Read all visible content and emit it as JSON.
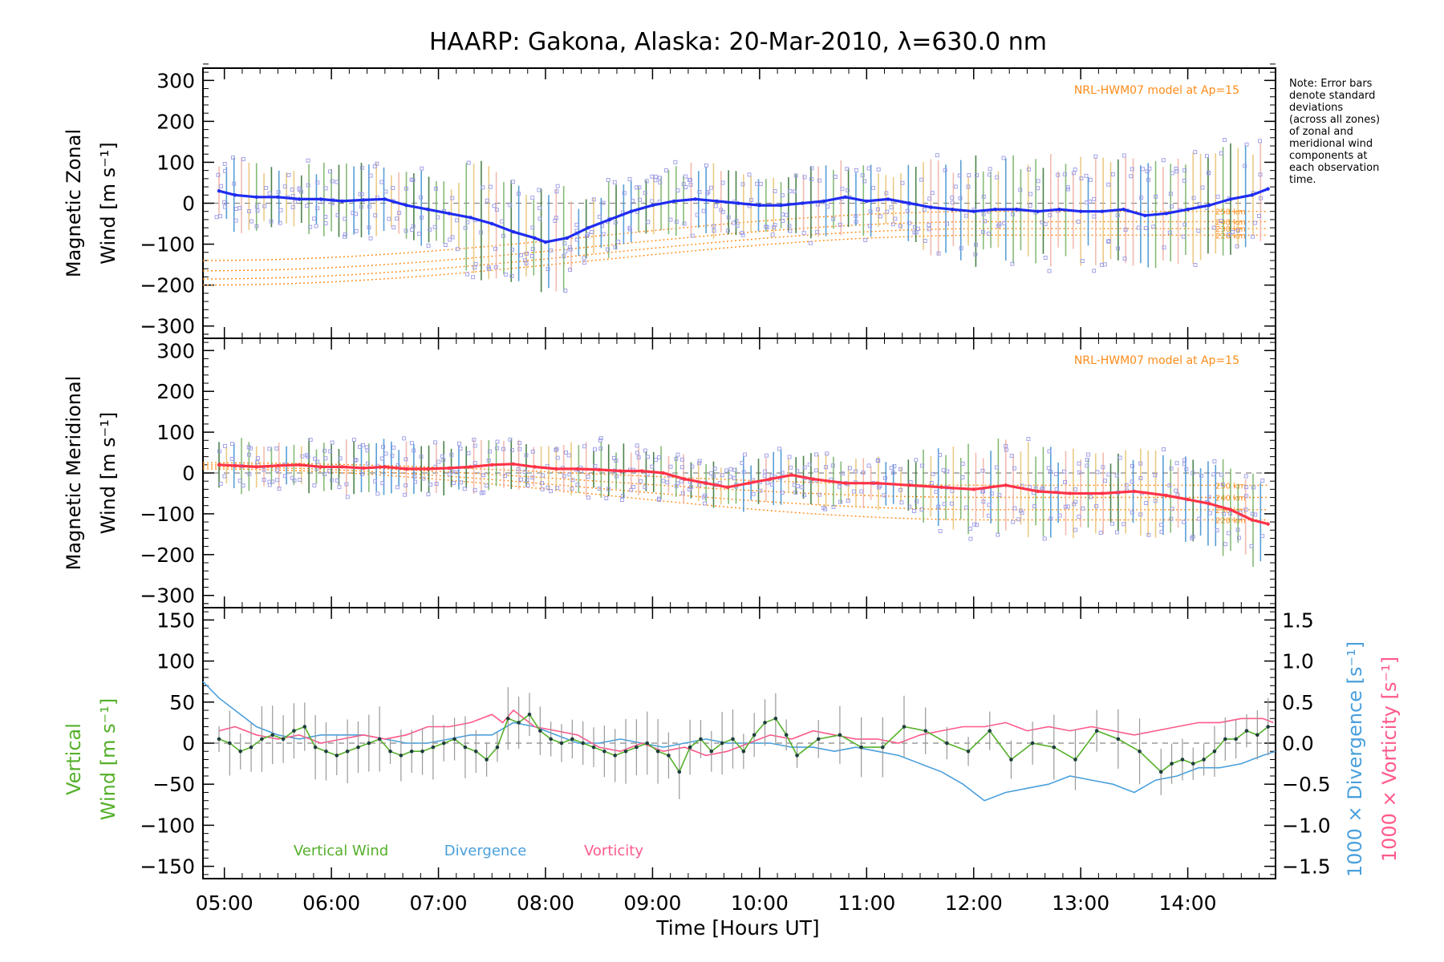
{
  "title": "HAARP: Gakona,  Alaska: 20-Mar-2010, λ=630.0 nm",
  "note": [
    "Note: Error bars",
    "denote standard",
    "deviations",
    "(across all zones)",
    "of zonal and",
    "meridional wind",
    "components at",
    "each observation",
    "time."
  ],
  "colors": {
    "zonal": "#1f2cf0",
    "meridional": "#ff3348",
    "vertical": "#55b02a",
    "divergence": "#4aa0dc",
    "vorticity": "#ff5a8a",
    "model": "#ff8c1a",
    "scatter": "#9a9ae6",
    "errorbar_dark": "#2c6e2c"
  },
  "chart_data": [
    {
      "type": "line",
      "panel": "zonal",
      "ylabel": [
        "Magnetic Zonal",
        "Wind [m s⁻¹]"
      ],
      "ylim": [
        -330,
        330
      ],
      "yticks": [
        300,
        200,
        100,
        0,
        -100,
        -200,
        -300
      ],
      "model_label": "NRL-HWM07 model at Ap=15",
      "model_altitudes": [
        "250 km",
        "240 km",
        "230 km",
        "220 km"
      ],
      "series": [
        {
          "x": [
            4.95,
            5.1,
            5.3,
            5.5,
            5.7,
            5.9,
            6.1,
            6.3,
            6.5,
            6.7,
            6.9,
            7.1,
            7.3,
            7.5,
            7.7,
            7.9,
            8.0,
            8.2,
            8.4,
            8.6,
            8.8,
            9.0,
            9.2,
            9.4,
            9.6,
            9.8,
            10.0,
            10.2,
            10.4,
            10.6,
            10.8,
            11.0,
            11.2,
            11.4,
            11.6,
            11.8,
            12.0,
            12.2,
            12.4,
            12.6,
            12.8,
            13.0,
            13.2,
            13.4,
            13.6,
            13.8,
            14.0,
            14.2,
            14.4,
            14.6,
            14.75
          ],
          "y": [
            30,
            20,
            15,
            15,
            10,
            10,
            5,
            8,
            10,
            -5,
            -15,
            -25,
            -35,
            -50,
            -70,
            -85,
            -95,
            -85,
            -60,
            -40,
            -20,
            -5,
            5,
            10,
            5,
            0,
            -5,
            -5,
            0,
            5,
            15,
            5,
            10,
            0,
            -10,
            -15,
            -20,
            -15,
            -15,
            -20,
            -15,
            -20,
            -20,
            -15,
            -30,
            -25,
            -15,
            -5,
            10,
            20,
            35
          ]
        }
      ],
      "model_series": [
        {
          "name": "250 km",
          "y": [
            -140,
            -20
          ]
        },
        {
          "name": "240 km",
          "y": [
            -165,
            -45
          ]
        },
        {
          "name": "230 km",
          "y": [
            -185,
            -62
          ]
        },
        {
          "name": "220 km",
          "y": [
            -200,
            -78
          ]
        }
      ]
    },
    {
      "type": "line",
      "panel": "meridional",
      "ylabel": [
        "Magnetic Meridional",
        "Wind [m s⁻¹]"
      ],
      "ylim": [
        -330,
        330
      ],
      "yticks": [
        300,
        200,
        100,
        0,
        -100,
        -200,
        -300
      ],
      "model_label": "NRL-HWM07 model at Ap=15",
      "model_altitudes": [
        "250 km",
        "240 km",
        "230 km",
        "220 km"
      ],
      "series": [
        {
          "x": [
            4.95,
            5.1,
            5.3,
            5.5,
            5.7,
            5.9,
            6.1,
            6.3,
            6.5,
            6.7,
            6.9,
            7.1,
            7.3,
            7.5,
            7.7,
            7.9,
            8.1,
            8.3,
            8.5,
            8.7,
            8.9,
            9.1,
            9.3,
            9.5,
            9.7,
            9.9,
            10.1,
            10.3,
            10.5,
            10.8,
            11.1,
            11.4,
            11.7,
            12.0,
            12.3,
            12.6,
            12.9,
            13.2,
            13.5,
            13.8,
            14.0,
            14.2,
            14.4,
            14.6,
            14.75
          ],
          "y": [
            20,
            18,
            15,
            18,
            20,
            15,
            15,
            12,
            15,
            10,
            10,
            12,
            15,
            20,
            22,
            15,
            10,
            10,
            8,
            5,
            5,
            0,
            -15,
            -25,
            -35,
            -25,
            -15,
            -5,
            -15,
            -25,
            -25,
            -30,
            -35,
            -40,
            -30,
            -45,
            -50,
            -50,
            -45,
            -55,
            -65,
            -75,
            -90,
            -115,
            -125
          ]
        }
      ],
      "model_series": [
        {
          "name": "250 km",
          "y": [
            25,
            -30
          ]
        },
        {
          "name": "240 km",
          "y": [
            20,
            -60
          ]
        },
        {
          "name": "230 km",
          "y": [
            15,
            -90
          ]
        },
        {
          "name": "220 km",
          "y": [
            10,
            -115
          ]
        }
      ]
    },
    {
      "type": "line",
      "panel": "vertical",
      "ylabel_left": [
        {
          "text": "Vertical",
          "color": "vertical"
        },
        {
          "text": "Wind [m s⁻¹]",
          "color": "vertical"
        }
      ],
      "ylabel_right": [
        {
          "text": "1000 × Divergence [s⁻¹]",
          "color": "divergence"
        },
        {
          "text": "1000 × Vorticity [s⁻¹]",
          "color": "vorticity"
        }
      ],
      "ylim": [
        -165,
        165
      ],
      "yticks": [
        150,
        100,
        50,
        0,
        -50,
        -100,
        -150
      ],
      "y2lim": [
        -1.65,
        1.65
      ],
      "y2ticks": [
        "1.5",
        "1.0",
        "0.5",
        "0.0",
        "−0.5",
        "−1.0",
        "−1.5"
      ],
      "xlabel": "Time [Hours UT]",
      "xlim": [
        4.8,
        14.82
      ],
      "xticks": [
        "05:00",
        "06:00",
        "07:00",
        "08:00",
        "09:00",
        "10:00",
        "11:00",
        "12:00",
        "13:00",
        "14:00"
      ],
      "legend": [
        {
          "label": "Vertical Wind",
          "color": "vertical"
        },
        {
          "label": "Divergence",
          "color": "divergence"
        },
        {
          "label": "Vorticity",
          "color": "vorticity"
        }
      ],
      "series": [
        {
          "name": "Vertical Wind",
          "color": "vertical",
          "x": [
            4.95,
            5.05,
            5.15,
            5.25,
            5.35,
            5.45,
            5.55,
            5.65,
            5.75,
            5.85,
            5.95,
            6.05,
            6.15,
            6.25,
            6.35,
            6.45,
            6.55,
            6.65,
            6.75,
            6.85,
            6.95,
            7.05,
            7.15,
            7.25,
            7.35,
            7.45,
            7.55,
            7.65,
            7.75,
            7.85,
            7.95,
            8.05,
            8.15,
            8.25,
            8.35,
            8.45,
            8.55,
            8.65,
            8.75,
            8.85,
            8.95,
            9.05,
            9.15,
            9.25,
            9.35,
            9.45,
            9.55,
            9.65,
            9.75,
            9.85,
            9.95,
            10.05,
            10.15,
            10.25,
            10.35,
            10.55,
            10.75,
            10.95,
            11.15,
            11.35,
            11.55,
            11.75,
            11.95,
            12.15,
            12.35,
            12.55,
            12.75,
            12.95,
            13.15,
            13.35,
            13.55,
            13.75,
            13.85,
            13.95,
            14.05,
            14.15,
            14.25,
            14.35,
            14.45,
            14.55,
            14.65,
            14.75
          ],
          "y": [
            5,
            0,
            -10,
            -5,
            5,
            10,
            5,
            15,
            20,
            -5,
            -10,
            -15,
            -10,
            -5,
            0,
            5,
            -10,
            -15,
            -10,
            -10,
            -5,
            0,
            5,
            -5,
            -10,
            -20,
            -5,
            30,
            25,
            35,
            15,
            5,
            0,
            5,
            0,
            -5,
            -10,
            -15,
            -10,
            -5,
            0,
            -10,
            -15,
            -35,
            -5,
            5,
            -10,
            0,
            5,
            -10,
            10,
            25,
            30,
            10,
            -15,
            5,
            10,
            -5,
            -5,
            20,
            15,
            0,
            -10,
            15,
            -20,
            0,
            -5,
            -20,
            15,
            5,
            -10,
            -35,
            -25,
            -20,
            -25,
            -20,
            -10,
            5,
            5,
            15,
            10,
            20
          ]
        },
        {
          "name": "Divergence",
          "color": "divergence",
          "x": [
            4.8,
            4.95,
            5.1,
            5.3,
            5.5,
            5.7,
            5.9,
            6.1,
            6.3,
            6.5,
            6.7,
            6.9,
            7.1,
            7.3,
            7.5,
            7.7,
            7.9,
            8.1,
            8.3,
            8.5,
            8.7,
            8.9,
            9.1,
            9.3,
            9.5,
            9.7,
            9.9,
            10.1,
            10.3,
            10.5,
            10.7,
            10.9,
            11.1,
            11.3,
            11.5,
            11.7,
            11.9,
            12.1,
            12.3,
            12.5,
            12.7,
            12.9,
            13.1,
            13.3,
            13.5,
            13.7,
            13.9,
            14.1,
            14.3,
            14.5,
            14.7,
            14.82
          ],
          "y": [
            0.75,
            0.55,
            0.4,
            0.2,
            0.1,
            0.05,
            0.1,
            0.1,
            0.1,
            0.05,
            0.0,
            0.0,
            0.05,
            0.1,
            0.1,
            0.25,
            0.2,
            0.1,
            0.0,
            0.0,
            0.05,
            0.0,
            -0.05,
            0.0,
            0.05,
            0.0,
            0.0,
            0.0,
            -0.05,
            -0.05,
            -0.1,
            -0.05,
            -0.1,
            -0.15,
            -0.25,
            -0.35,
            -0.5,
            -0.7,
            -0.6,
            -0.55,
            -0.5,
            -0.4,
            -0.45,
            -0.5,
            -0.6,
            -0.45,
            -0.4,
            -0.3,
            -0.3,
            -0.25,
            -0.15,
            -0.1
          ]
        },
        {
          "name": "Vorticity",
          "color": "vorticity",
          "x": [
            4.95,
            5.1,
            5.3,
            5.5,
            5.7,
            5.9,
            6.1,
            6.3,
            6.5,
            6.7,
            6.9,
            7.1,
            7.3,
            7.5,
            7.6,
            7.7,
            7.8,
            7.9,
            8.1,
            8.3,
            8.5,
            8.7,
            8.9,
            9.1,
            9.3,
            9.5,
            9.7,
            9.9,
            10.1,
            10.3,
            10.5,
            10.7,
            10.9,
            11.1,
            11.3,
            11.5,
            11.7,
            11.9,
            12.1,
            12.3,
            12.5,
            12.7,
            12.9,
            13.1,
            13.3,
            13.5,
            13.7,
            13.9,
            14.1,
            14.3,
            14.5,
            14.7,
            14.8
          ],
          "y": [
            0.15,
            0.2,
            0.1,
            0.05,
            0.1,
            0.0,
            0.05,
            0.1,
            0.05,
            0.1,
            0.2,
            0.2,
            0.25,
            0.35,
            0.25,
            0.4,
            0.3,
            0.2,
            0.15,
            0.1,
            -0.05,
            -0.1,
            0.0,
            -0.1,
            -0.05,
            -0.15,
            -0.1,
            0.0,
            0.1,
            0.05,
            0.15,
            0.1,
            0.05,
            0.05,
            0.0,
            0.1,
            0.15,
            0.2,
            0.2,
            0.25,
            0.15,
            0.2,
            0.15,
            0.2,
            0.15,
            0.1,
            0.15,
            0.2,
            0.25,
            0.25,
            0.3,
            0.3,
            0.25
          ]
        }
      ]
    }
  ]
}
